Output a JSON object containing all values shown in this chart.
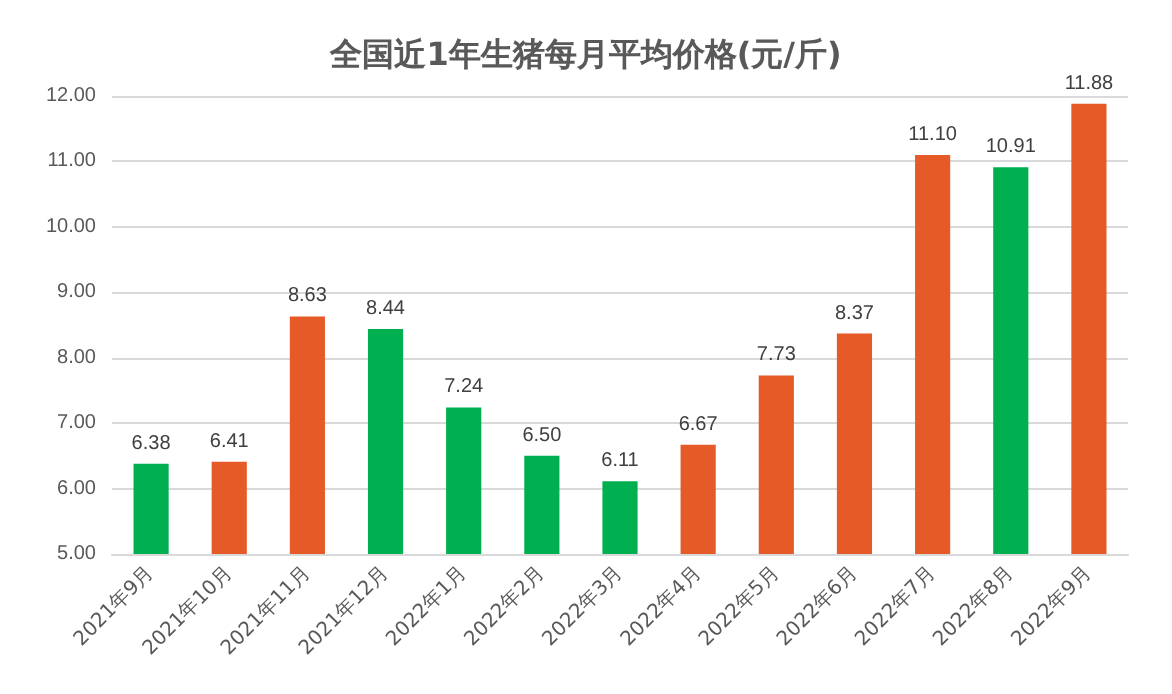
{
  "chart_data": {
    "type": "bar",
    "title": "全国近1年生猪每月平均价格(元/斤)",
    "categories": [
      "2021年9月",
      "2021年10月",
      "2021年11月",
      "2021年12月",
      "2022年1月",
      "2022年2月",
      "2022年3月",
      "2022年4月",
      "2022年5月",
      "2022年6月",
      "2022年7月",
      "2022年8月",
      "2022年9月"
    ],
    "values": [
      6.38,
      6.41,
      8.63,
      8.44,
      7.24,
      6.5,
      6.11,
      6.67,
      7.73,
      8.37,
      11.1,
      10.91,
      11.88
    ],
    "value_labels": [
      "6.38",
      "6.41",
      "8.63",
      "8.44",
      "7.24",
      "6.50",
      "6.11",
      "6.67",
      "7.73",
      "8.37",
      "11.10",
      "10.91",
      "11.88"
    ],
    "colors": [
      "#00b050",
      "#e65a28",
      "#e65a28",
      "#00b050",
      "#00b050",
      "#00b050",
      "#00b050",
      "#e65a28",
      "#e65a28",
      "#e65a28",
      "#e65a28",
      "#00b050",
      "#e65a28"
    ],
    "ylim": [
      5,
      12
    ],
    "yticks": [
      {
        "value": 5,
        "label": "5.00"
      },
      {
        "value": 6,
        "label": "6.00"
      },
      {
        "value": 7,
        "label": "7.00"
      },
      {
        "value": 8,
        "label": "8.00"
      },
      {
        "value": 9,
        "label": "9.00"
      },
      {
        "value": 10,
        "label": "10.00"
      },
      {
        "value": 11,
        "label": "11.00"
      },
      {
        "value": 12,
        "label": "12.00"
      }
    ],
    "grid": "y"
  }
}
